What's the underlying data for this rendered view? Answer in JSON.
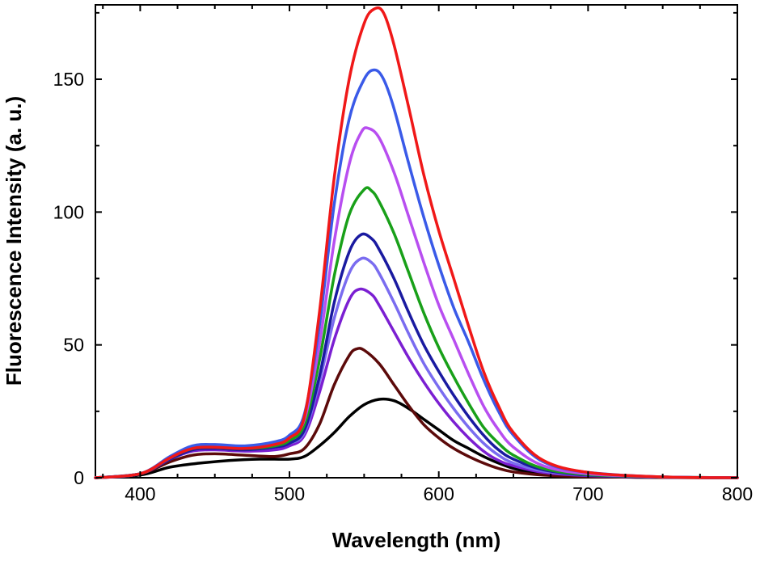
{
  "chart_data": {
    "type": "line",
    "title": "",
    "xlabel": "Wavelength (nm)",
    "ylabel": "Fluorescence Intensity (a. u.)",
    "xlim": [
      370,
      800
    ],
    "ylim": [
      0,
      178
    ],
    "x_ticks": [
      400,
      500,
      600,
      700,
      800
    ],
    "x_tick_labels": [
      "400",
      "500",
      "600",
      "700",
      "800"
    ],
    "y_ticks": [
      0,
      50,
      100,
      150
    ],
    "y_tick_labels": [
      "0",
      "50",
      "100",
      "150"
    ],
    "grid": false,
    "legend": "none",
    "series": [
      {
        "color": "#000000",
        "points": [
          [
            370,
            0
          ],
          [
            400,
            1
          ],
          [
            420,
            4
          ],
          [
            440,
            5.5
          ],
          [
            460,
            6.5
          ],
          [
            480,
            7
          ],
          [
            500,
            7
          ],
          [
            510,
            8
          ],
          [
            520,
            12
          ],
          [
            530,
            17
          ],
          [
            540,
            23
          ],
          [
            550,
            27.5
          ],
          [
            560,
            29.5
          ],
          [
            570,
            29
          ],
          [
            580,
            26
          ],
          [
            590,
            22
          ],
          [
            600,
            18
          ],
          [
            610,
            14
          ],
          [
            620,
            11
          ],
          [
            630,
            8
          ],
          [
            640,
            5.5
          ],
          [
            650,
            3.5
          ],
          [
            660,
            2.3
          ],
          [
            680,
            1
          ],
          [
            700,
            0.5
          ],
          [
            750,
            0.1
          ],
          [
            800,
            0
          ]
        ]
      },
      {
        "color": "#5c0a0a",
        "points": [
          [
            370,
            0
          ],
          [
            400,
            1.5
          ],
          [
            420,
            6
          ],
          [
            435,
            8.5
          ],
          [
            450,
            9
          ],
          [
            470,
            8.5
          ],
          [
            490,
            8
          ],
          [
            500,
            9
          ],
          [
            510,
            11
          ],
          [
            520,
            20
          ],
          [
            530,
            35
          ],
          [
            540,
            46
          ],
          [
            545,
            48.5
          ],
          [
            550,
            48
          ],
          [
            560,
            43
          ],
          [
            570,
            35
          ],
          [
            580,
            27
          ],
          [
            590,
            20
          ],
          [
            600,
            15
          ],
          [
            610,
            11
          ],
          [
            620,
            8
          ],
          [
            630,
            5.5
          ],
          [
            640,
            3.5
          ],
          [
            650,
            2.2
          ],
          [
            670,
            1
          ],
          [
            700,
            0.4
          ],
          [
            750,
            0.1
          ],
          [
            800,
            0
          ]
        ]
      },
      {
        "color": "#7b1fd2",
        "points": [
          [
            370,
            0
          ],
          [
            400,
            1.5
          ],
          [
            420,
            7
          ],
          [
            435,
            10
          ],
          [
            450,
            10.5
          ],
          [
            470,
            10
          ],
          [
            490,
            10.5
          ],
          [
            500,
            12
          ],
          [
            510,
            16
          ],
          [
            520,
            32
          ],
          [
            530,
            52
          ],
          [
            540,
            67
          ],
          [
            547,
            71
          ],
          [
            555,
            69
          ],
          [
            560,
            65
          ],
          [
            570,
            55
          ],
          [
            580,
            45
          ],
          [
            590,
            36
          ],
          [
            600,
            28
          ],
          [
            610,
            21
          ],
          [
            620,
            15
          ],
          [
            630,
            10
          ],
          [
            640,
            6.5
          ],
          [
            650,
            4.5
          ],
          [
            670,
            2
          ],
          [
            700,
            0.8
          ],
          [
            750,
            0.2
          ],
          [
            800,
            0
          ]
        ]
      },
      {
        "color": "#7a6cf0",
        "points": [
          [
            370,
            0
          ],
          [
            400,
            1.5
          ],
          [
            420,
            7
          ],
          [
            435,
            10.5
          ],
          [
            450,
            11
          ],
          [
            470,
            10.5
          ],
          [
            490,
            11.5
          ],
          [
            500,
            13
          ],
          [
            510,
            17
          ],
          [
            520,
            36
          ],
          [
            530,
            60
          ],
          [
            540,
            77
          ],
          [
            548,
            82.5
          ],
          [
            555,
            81
          ],
          [
            560,
            77
          ],
          [
            570,
            66
          ],
          [
            580,
            54
          ],
          [
            590,
            43
          ],
          [
            600,
            34
          ],
          [
            610,
            26
          ],
          [
            620,
            19
          ],
          [
            630,
            13
          ],
          [
            640,
            8.5
          ],
          [
            650,
            5.5
          ],
          [
            670,
            2.5
          ],
          [
            700,
            1
          ],
          [
            750,
            0.2
          ],
          [
            800,
            0
          ]
        ]
      },
      {
        "color": "#1a1aa0",
        "points": [
          [
            370,
            0
          ],
          [
            400,
            1.5
          ],
          [
            420,
            7
          ],
          [
            435,
            10.5
          ],
          [
            450,
            11
          ],
          [
            470,
            10.5
          ],
          [
            490,
            11.5
          ],
          [
            500,
            13
          ],
          [
            510,
            18
          ],
          [
            520,
            38
          ],
          [
            530,
            66
          ],
          [
            540,
            85
          ],
          [
            548,
            91.5
          ],
          [
            555,
            90
          ],
          [
            560,
            86
          ],
          [
            570,
            75
          ],
          [
            580,
            62
          ],
          [
            590,
            50
          ],
          [
            600,
            40
          ],
          [
            610,
            31
          ],
          [
            620,
            23
          ],
          [
            630,
            16
          ],
          [
            640,
            10.5
          ],
          [
            650,
            7
          ],
          [
            670,
            3
          ],
          [
            700,
            1
          ],
          [
            750,
            0.2
          ],
          [
            800,
            0
          ]
        ]
      },
      {
        "color": "#19a019",
        "points": [
          [
            370,
            0
          ],
          [
            400,
            1.5
          ],
          [
            420,
            7.5
          ],
          [
            435,
            11
          ],
          [
            450,
            11.5
          ],
          [
            470,
            11
          ],
          [
            490,
            12
          ],
          [
            500,
            14
          ],
          [
            510,
            20
          ],
          [
            520,
            44
          ],
          [
            530,
            76
          ],
          [
            540,
            99
          ],
          [
            550,
            108.5
          ],
          [
            555,
            108
          ],
          [
            560,
            104
          ],
          [
            570,
            92
          ],
          [
            580,
            77
          ],
          [
            590,
            62
          ],
          [
            600,
            49
          ],
          [
            610,
            38
          ],
          [
            620,
            28
          ],
          [
            630,
            19
          ],
          [
            640,
            13
          ],
          [
            650,
            8.5
          ],
          [
            670,
            3.5
          ],
          [
            700,
            1.2
          ],
          [
            750,
            0.3
          ],
          [
            800,
            0
          ]
        ]
      },
      {
        "color": "#b84ef0",
        "points": [
          [
            370,
            0
          ],
          [
            400,
            1.5
          ],
          [
            420,
            7.5
          ],
          [
            435,
            11.5
          ],
          [
            450,
            12
          ],
          [
            470,
            11.5
          ],
          [
            490,
            13
          ],
          [
            500,
            15
          ],
          [
            510,
            22
          ],
          [
            520,
            50
          ],
          [
            530,
            89
          ],
          [
            540,
            118
          ],
          [
            548,
            130
          ],
          [
            553,
            131.5
          ],
          [
            560,
            128
          ],
          [
            570,
            115
          ],
          [
            580,
            98
          ],
          [
            590,
            81
          ],
          [
            600,
            65
          ],
          [
            610,
            52
          ],
          [
            620,
            39
          ],
          [
            630,
            27
          ],
          [
            640,
            18
          ],
          [
            650,
            11.5
          ],
          [
            670,
            4.5
          ],
          [
            700,
            1.5
          ],
          [
            750,
            0.3
          ],
          [
            800,
            0
          ]
        ]
      },
      {
        "color": "#3a5ae8",
        "points": [
          [
            370,
            0
          ],
          [
            400,
            1.5
          ],
          [
            420,
            8
          ],
          [
            435,
            12
          ],
          [
            450,
            12.5
          ],
          [
            470,
            12
          ],
          [
            490,
            13.5
          ],
          [
            500,
            16
          ],
          [
            510,
            24
          ],
          [
            520,
            57
          ],
          [
            530,
            103
          ],
          [
            540,
            135
          ],
          [
            550,
            150
          ],
          [
            557,
            153.5
          ],
          [
            563,
            150
          ],
          [
            570,
            139
          ],
          [
            580,
            118
          ],
          [
            590,
            98
          ],
          [
            600,
            80
          ],
          [
            610,
            64
          ],
          [
            620,
            51
          ],
          [
            630,
            37
          ],
          [
            640,
            25
          ],
          [
            650,
            16
          ],
          [
            670,
            6
          ],
          [
            700,
            2
          ],
          [
            750,
            0.3
          ],
          [
            800,
            0
          ]
        ]
      },
      {
        "color": "#f01818",
        "points": [
          [
            370,
            0
          ],
          [
            400,
            1.5
          ],
          [
            420,
            7.5
          ],
          [
            435,
            11
          ],
          [
            450,
            11.5
          ],
          [
            470,
            11
          ],
          [
            490,
            12.5
          ],
          [
            500,
            15
          ],
          [
            510,
            23
          ],
          [
            520,
            62
          ],
          [
            530,
            113
          ],
          [
            540,
            150
          ],
          [
            550,
            171
          ],
          [
            557,
            176.5
          ],
          [
            563,
            175
          ],
          [
            570,
            163
          ],
          [
            580,
            139
          ],
          [
            590,
            114
          ],
          [
            600,
            93
          ],
          [
            610,
            75
          ],
          [
            620,
            57
          ],
          [
            630,
            40
          ],
          [
            640,
            27
          ],
          [
            650,
            17
          ],
          [
            670,
            6.5
          ],
          [
            700,
            2
          ],
          [
            750,
            0.3
          ],
          [
            800,
            0
          ]
        ]
      }
    ]
  }
}
